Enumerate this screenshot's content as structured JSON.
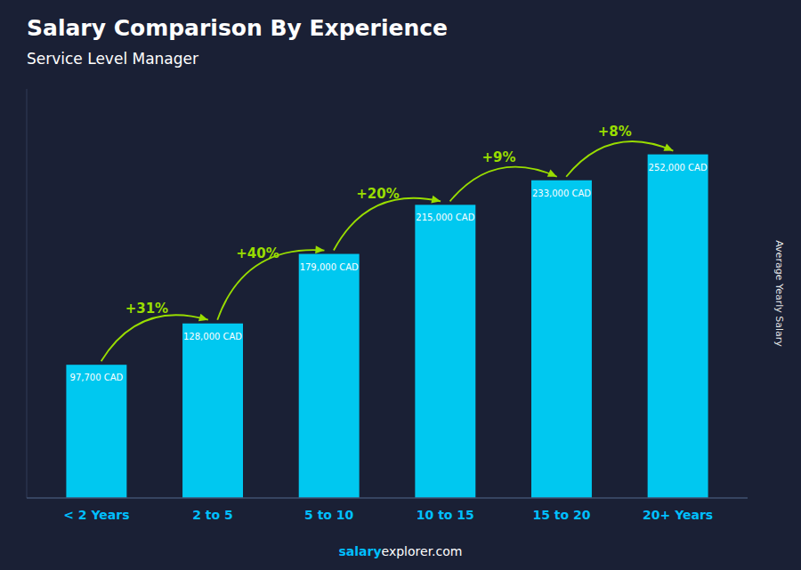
{
  "chart_data": {
    "type": "bar",
    "title": "Salary Comparison By Experience",
    "subtitle": "Service Level Manager",
    "ylabel": "Average Yearly Salary",
    "categories": [
      "< 2 Years",
      "2 to 5",
      "5 to 10",
      "10 to 15",
      "15 to 20",
      "20+ Years"
    ],
    "values": [
      97700,
      128000,
      179000,
      215000,
      233000,
      252000
    ],
    "value_labels": [
      "97,700 CAD",
      "128,000 CAD",
      "179,000 CAD",
      "215,000 CAD",
      "233,000 CAD",
      "252,000 CAD"
    ],
    "data_labels": true,
    "color": "#00c8f0",
    "ylim": [
      0,
      300000
    ],
    "tick_labels": "x",
    "grid": false,
    "annotations": [
      "+31%",
      "+40%",
      "+20%",
      "+9%",
      "+8%"
    ],
    "footer": [
      "salary",
      "explorer.com"
    ]
  }
}
